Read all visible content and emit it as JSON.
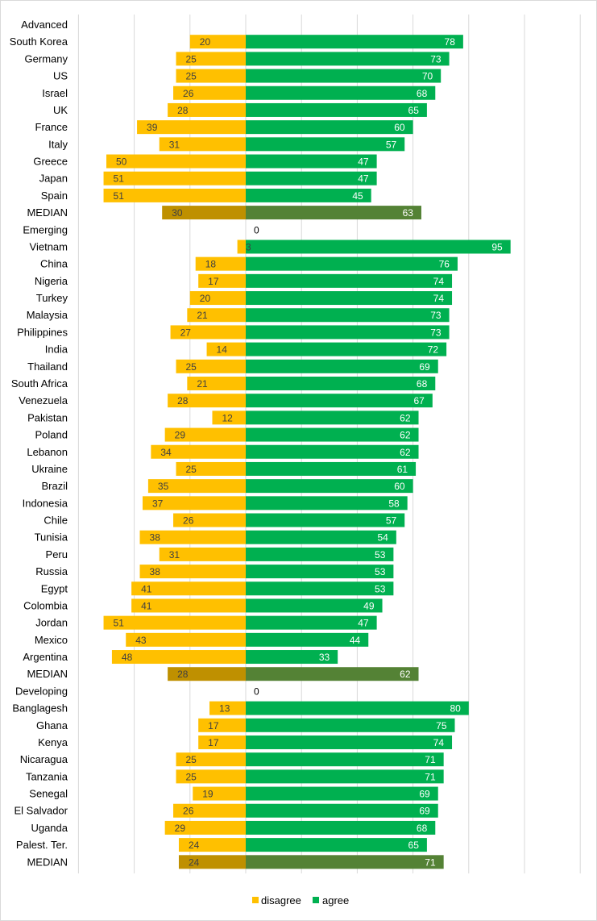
{
  "chart_data": {
    "type": "bar",
    "orientation": "horizontal-diverging",
    "colors": {
      "disagree": "#ffc000",
      "agree": "#00b050",
      "median_disagree": "#bf9000",
      "median_agree": "#548235",
      "grid": "#d9d9d9"
    },
    "grid": true,
    "legend_position": "bottom",
    "legend": [
      {
        "key": "disagree",
        "label": "disagree"
      },
      {
        "key": "agree",
        "label": "agree"
      }
    ],
    "rows": [
      {
        "label": "Advanced",
        "header": true
      },
      {
        "label": "South Korea",
        "disagree": 20,
        "agree": 78
      },
      {
        "label": "Germany",
        "disagree": 25,
        "agree": 73
      },
      {
        "label": "US",
        "disagree": 25,
        "agree": 70
      },
      {
        "label": "Israel",
        "disagree": 26,
        "agree": 68
      },
      {
        "label": "UK",
        "disagree": 28,
        "agree": 65
      },
      {
        "label": "France",
        "disagree": 39,
        "agree": 60
      },
      {
        "label": "Italy",
        "disagree": 31,
        "agree": 57
      },
      {
        "label": "Greece",
        "disagree": 50,
        "agree": 47
      },
      {
        "label": "Japan",
        "disagree": 51,
        "agree": 47
      },
      {
        "label": "Spain",
        "disagree": 51,
        "agree": 45
      },
      {
        "label": "MEDIAN",
        "disagree": 30,
        "agree": 63,
        "median": true
      },
      {
        "label": "Emerging",
        "header": true,
        "agree_label": "0"
      },
      {
        "label": "Vietnam",
        "disagree": 3,
        "agree": 95
      },
      {
        "label": "China",
        "disagree": 18,
        "agree": 76
      },
      {
        "label": "Nigeria",
        "disagree": 17,
        "agree": 74
      },
      {
        "label": "Turkey",
        "disagree": 20,
        "agree": 74
      },
      {
        "label": "Malaysia",
        "disagree": 21,
        "agree": 73
      },
      {
        "label": "Philippines",
        "disagree": 27,
        "agree": 73
      },
      {
        "label": "India",
        "disagree": 14,
        "agree": 72
      },
      {
        "label": "Thailand",
        "disagree": 25,
        "agree": 69
      },
      {
        "label": "South Africa",
        "disagree": 21,
        "agree": 68
      },
      {
        "label": "Venezuela",
        "disagree": 28,
        "agree": 67
      },
      {
        "label": "Pakistan",
        "disagree": 12,
        "agree": 62
      },
      {
        "label": "Poland",
        "disagree": 29,
        "agree": 62
      },
      {
        "label": "Lebanon",
        "disagree": 34,
        "agree": 62
      },
      {
        "label": "Ukraine",
        "disagree": 25,
        "agree": 61
      },
      {
        "label": "Brazil",
        "disagree": 35,
        "agree": 60
      },
      {
        "label": "Indonesia",
        "disagree": 37,
        "agree": 58
      },
      {
        "label": "Chile",
        "disagree": 26,
        "agree": 57
      },
      {
        "label": "Tunisia",
        "disagree": 38,
        "agree": 54
      },
      {
        "label": "Peru",
        "disagree": 31,
        "agree": 53
      },
      {
        "label": "Russia",
        "disagree": 38,
        "agree": 53
      },
      {
        "label": "Egypt",
        "disagree": 41,
        "agree": 53
      },
      {
        "label": "Colombia",
        "disagree": 41,
        "agree": 49
      },
      {
        "label": "Jordan",
        "disagree": 51,
        "agree": 47
      },
      {
        "label": "Mexico",
        "disagree": 43,
        "agree": 44
      },
      {
        "label": "Argentina",
        "disagree": 48,
        "agree": 33
      },
      {
        "label": "MEDIAN",
        "disagree": 28,
        "agree": 62,
        "median": true
      },
      {
        "label": "Developing",
        "header": true,
        "agree_label": "0"
      },
      {
        "label": "Banglagesh",
        "disagree": 13,
        "agree": 80
      },
      {
        "label": "Ghana",
        "disagree": 17,
        "agree": 75
      },
      {
        "label": "Kenya",
        "disagree": 17,
        "agree": 74
      },
      {
        "label": "Nicaragua",
        "disagree": 25,
        "agree": 71
      },
      {
        "label": "Tanzania",
        "disagree": 25,
        "agree": 71
      },
      {
        "label": "Senegal",
        "disagree": 19,
        "agree": 69
      },
      {
        "label": "El Salvador",
        "disagree": 26,
        "agree": 69
      },
      {
        "label": "Uganda",
        "disagree": 29,
        "agree": 68
      },
      {
        "label": "Palest. Ter.",
        "disagree": 24,
        "agree": 65
      },
      {
        "label": "MEDIAN",
        "disagree": 24,
        "agree": 71,
        "median": true
      }
    ]
  }
}
